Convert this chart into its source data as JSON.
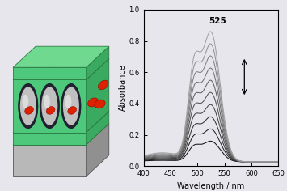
{
  "background_color": "#e8e6ed",
  "plot_bg": "#e8e6ed",
  "wavelength_min": 400,
  "wavelength_max": 650,
  "abs_min": 0.0,
  "abs_max": 1.0,
  "xticks": [
    400,
    450,
    500,
    550,
    600,
    650
  ],
  "yticks": [
    0.0,
    0.2,
    0.4,
    0.6,
    0.8,
    1.0
  ],
  "xlabel": "Wavelength / nm",
  "ylabel": "Absorbance",
  "annotation_text": "525",
  "n_curves": 10,
  "green_color": "#4ec87a",
  "green_top": "#6fd990",
  "green_right": "#3aaa60",
  "gray_color": "#b8b8b8",
  "gray_top": "#cccccc",
  "gray_right": "#909090",
  "red_color": "#dd2200",
  "dark_tunnel": "#222233"
}
